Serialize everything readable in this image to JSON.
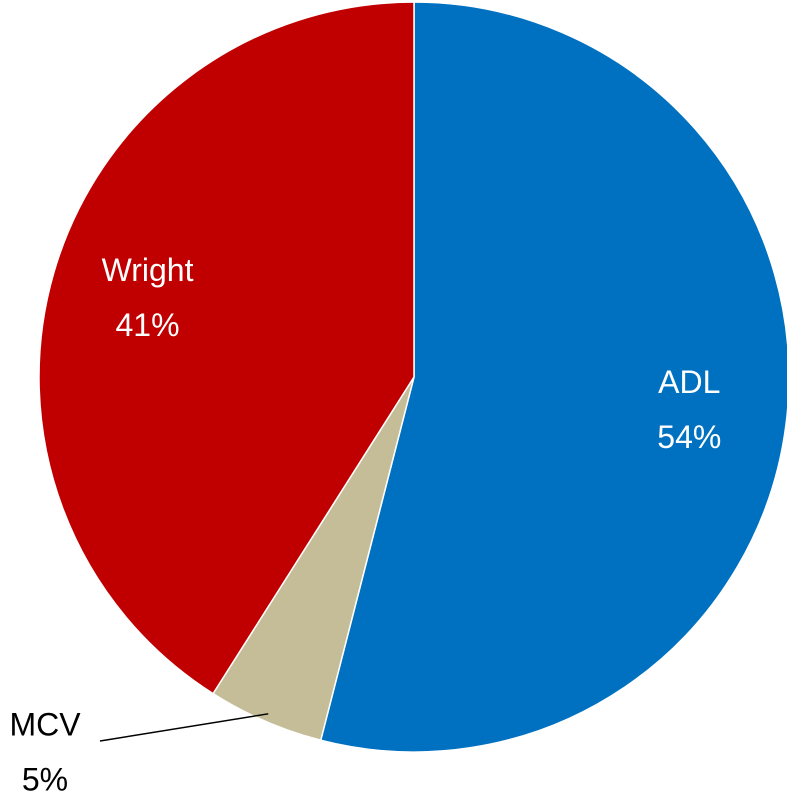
{
  "chart_data": {
    "type": "pie",
    "categories": [
      "ADL",
      "MCV",
      "Wright"
    ],
    "values": [
      54,
      5,
      41
    ],
    "value_labels": [
      "54%",
      "5%",
      "41%"
    ],
    "colors": [
      "#0070c0",
      "#c4bd97",
      "#c00000"
    ]
  }
}
